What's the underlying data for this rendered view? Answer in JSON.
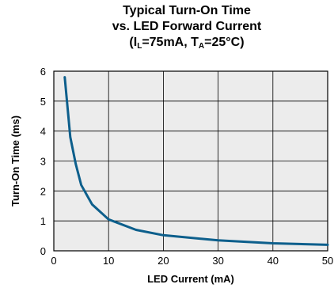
{
  "chart_data": {
    "type": "line",
    "title_line1": "Typical Turn-On Time",
    "title_line2": "vs. LED Forward Current",
    "title_line3": {
      "open": "(I",
      "sub1": "L",
      "mid": "=75mA, T",
      "sub2": "A",
      "close": "=25°C)"
    },
    "xlabel": "LED Current (mA)",
    "ylabel": "Turn-On Time (ms)",
    "xlim": [
      0,
      50
    ],
    "ylim": [
      0,
      6
    ],
    "xticks": [
      "0",
      "10",
      "20",
      "30",
      "40",
      "50"
    ],
    "yticks": [
      "0",
      "1",
      "2",
      "3",
      "4",
      "5",
      "6"
    ],
    "grid": true,
    "colors": {
      "line": "#0d5f8c",
      "plot_bg": "#ececec",
      "grid": "#000000"
    },
    "series": [
      {
        "x": [
          2,
          3,
          4,
          5,
          7,
          10,
          15,
          20,
          30,
          40,
          50
        ],
        "y": [
          5.8,
          3.8,
          2.9,
          2.2,
          1.55,
          1.05,
          0.7,
          0.52,
          0.35,
          0.25,
          0.2
        ]
      }
    ]
  }
}
